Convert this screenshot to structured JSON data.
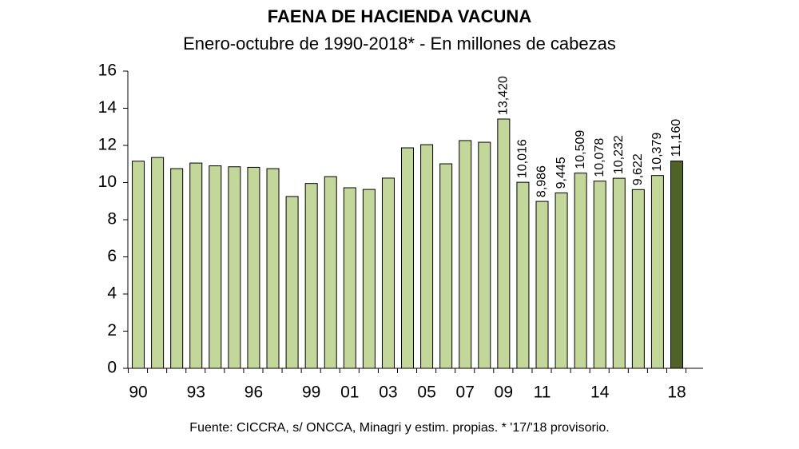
{
  "chart_data": {
    "type": "bar",
    "title": "FAENA DE HACIENDA VACUNA",
    "subtitle": "Enero-octubre de 1990-2018* - En millones de cabezas",
    "footnote": "Fuente: CICCRA, s/ ONCCA, Minagri y estim. propias. * '17/'18 provisorio.",
    "categories": [
      "90",
      null,
      null,
      "93",
      null,
      null,
      "96",
      null,
      null,
      "99",
      null,
      "01",
      null,
      "03",
      null,
      "05",
      null,
      "07",
      null,
      "09",
      null,
      "11",
      null,
      null,
      "14",
      null,
      null,
      null,
      "18"
    ],
    "values": [
      11.15,
      11.35,
      10.75,
      11.05,
      10.9,
      10.85,
      10.82,
      10.75,
      9.25,
      9.95,
      10.32,
      9.72,
      9.63,
      10.24,
      11.87,
      12.04,
      11.01,
      12.26,
      12.17,
      13.42,
      10.016,
      8.986,
      9.445,
      10.509,
      10.078,
      10.232,
      9.622,
      10.379,
      11.16
    ],
    "value_labels": [
      null,
      null,
      null,
      null,
      null,
      null,
      null,
      null,
      null,
      null,
      null,
      null,
      null,
      null,
      null,
      null,
      null,
      null,
      null,
      "13,420",
      "10,016",
      "8,986",
      "9,445",
      "10,509",
      "10,078",
      "10,232",
      "9,622",
      "10,379",
      "11,160"
    ],
    "colors": [
      "#c4d79b",
      "#c4d79b",
      "#c4d79b",
      "#c4d79b",
      "#c4d79b",
      "#c4d79b",
      "#c4d79b",
      "#c4d79b",
      "#c4d79b",
      "#c4d79b",
      "#c4d79b",
      "#c4d79b",
      "#c4d79b",
      "#c4d79b",
      "#c4d79b",
      "#c4d79b",
      "#c4d79b",
      "#c4d79b",
      "#c4d79b",
      "#c4d79b",
      "#c4d79b",
      "#c4d79b",
      "#c4d79b",
      "#c4d79b",
      "#c4d79b",
      "#c4d79b",
      "#c4d79b",
      "#c4d79b",
      "#4f6228"
    ],
    "ylim": [
      0,
      16
    ],
    "yticks": [
      0,
      2,
      4,
      6,
      8,
      10,
      12,
      14,
      16
    ],
    "grid": false
  }
}
